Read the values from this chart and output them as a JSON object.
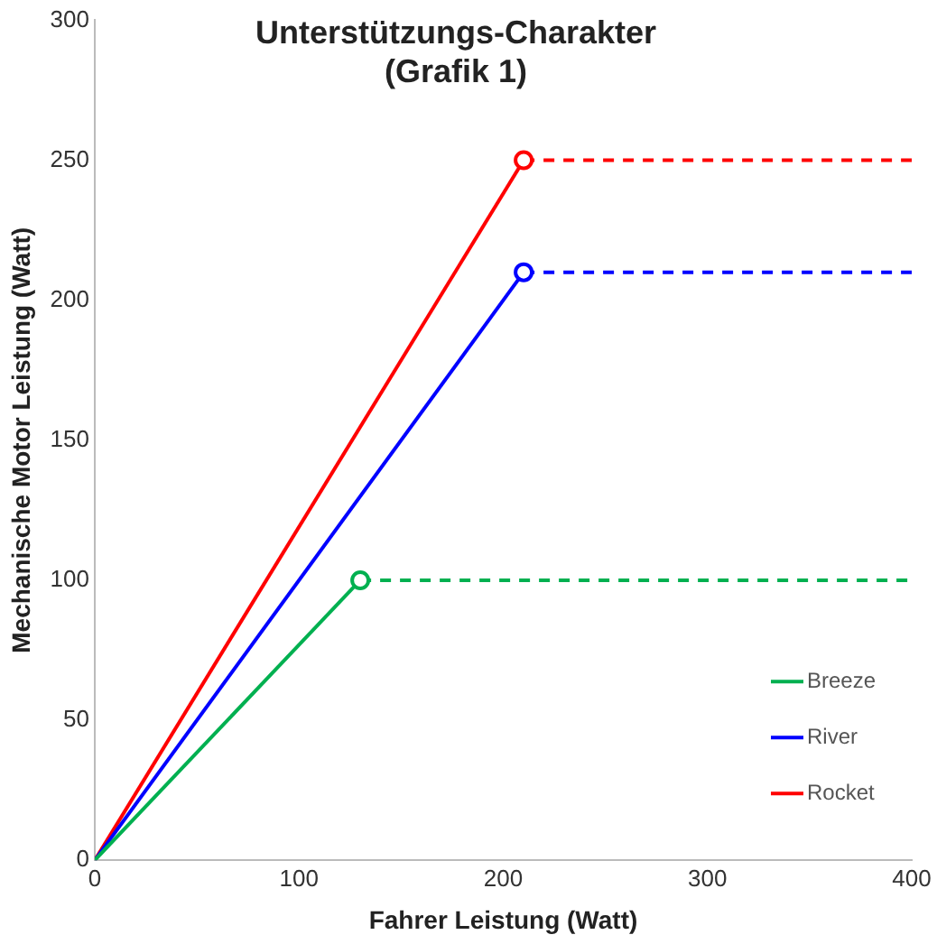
{
  "chart_data": {
    "type": "line",
    "title": "Unterstützungs-Charakter\n(Grafik 1)",
    "xlabel": "Fahrer Leistung (Watt)",
    "ylabel": "Mechanische Motor Leistung (Watt)",
    "xlim": [
      0,
      400
    ],
    "xticks": [
      0,
      100,
      200,
      300,
      400
    ],
    "ylim": [
      0,
      300
    ],
    "yticks": [
      0,
      50,
      100,
      150,
      200,
      250,
      300
    ],
    "grid": false,
    "legend": "bottom right",
    "series": [
      {
        "name": "Breeze",
        "color": "#00b050",
        "x": [
          0,
          130
        ],
        "values": [
          0,
          100
        ],
        "line_style": "solid",
        "marker": "none"
      },
      {
        "name": "River",
        "color": "#0000ff",
        "x": [
          0,
          210
        ],
        "values": [
          0,
          210
        ],
        "line_style": "solid",
        "marker": "none"
      },
      {
        "name": "Rocket",
        "color": "#ff0000",
        "x": [
          0,
          210
        ],
        "values": [
          0,
          250
        ],
        "line_style": "solid",
        "marker": "none"
      },
      {
        "color": "#00b050",
        "x": [
          130,
          400
        ],
        "values": [
          100,
          100
        ],
        "line_style": "dashed",
        "marker": "none"
      },
      {
        "color": "#0000ff",
        "x": [
          210,
          400
        ],
        "values": [
          210,
          210
        ],
        "line_style": "dashed",
        "marker": "none"
      },
      {
        "color": "#ff0000",
        "x": [
          210,
          400
        ],
        "values": [
          250,
          250
        ],
        "line_style": "dashed",
        "marker": "none"
      },
      {
        "type": "scatter",
        "color": "#00b050",
        "x": [
          130
        ],
        "values": [
          100
        ],
        "marker": "circle"
      },
      {
        "type": "scatter",
        "color": "#0000ff",
        "x": [
          210
        ],
        "values": [
          210
        ],
        "marker": "circle"
      },
      {
        "type": "scatter",
        "color": "#ff0000",
        "x": [
          210
        ],
        "values": [
          250
        ],
        "marker": "circle"
      }
    ]
  }
}
